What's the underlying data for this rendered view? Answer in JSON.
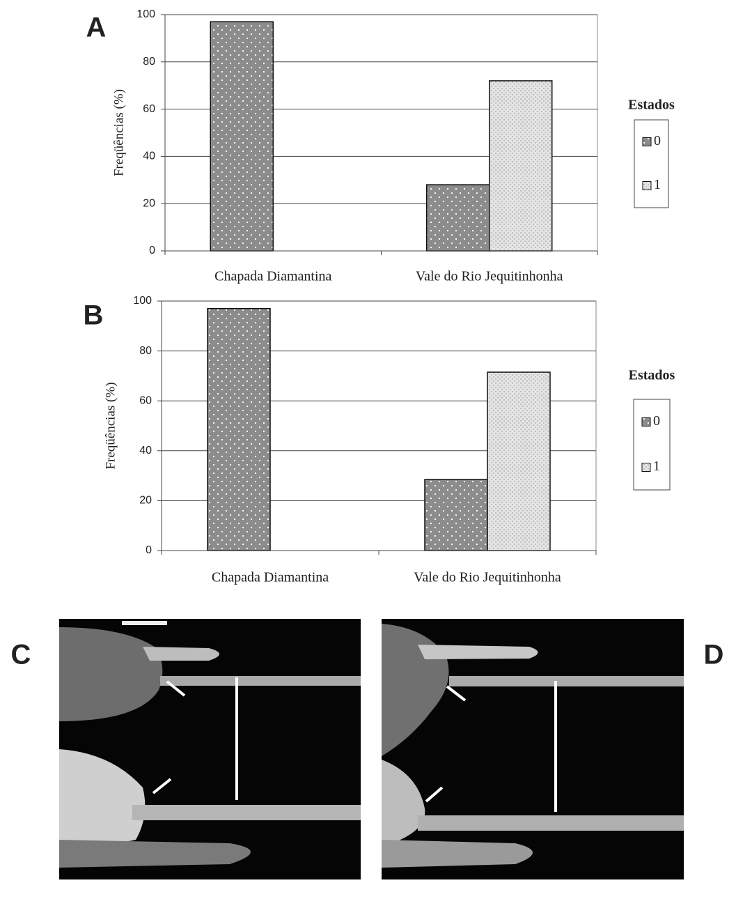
{
  "chart_data": [
    {
      "type": "bar",
      "panel_label": "A",
      "y_label": "Freqüências (%)",
      "legend_title": "Estados",
      "categories": [
        "Chapada Diamantina",
        "Vale do Rio  Jequitinhonha"
      ],
      "series": [
        {
          "name": "0",
          "color": "#8c8c8c",
          "values": [
            97,
            28
          ]
        },
        {
          "name": "1",
          "color": "#e4e4e4",
          "values": [
            0,
            72
          ]
        }
      ],
      "ylim": [
        0,
        100
      ],
      "yticks": [
        0,
        20,
        40,
        60,
        80,
        100
      ],
      "grid": true
    },
    {
      "type": "bar",
      "panel_label": "B",
      "y_label": "Freqüências (%)",
      "legend_title": "Estados",
      "categories": [
        "Chapada Diamantina",
        "Vale do Rio  Jequitinhonha"
      ],
      "series": [
        {
          "name": "0",
          "color": "#8c8c8c",
          "values": [
            97,
            28.5
          ]
        },
        {
          "name": "1",
          "color": "#e4e4e4",
          "values": [
            0,
            71.5
          ]
        }
      ],
      "ylim": [
        0,
        100
      ],
      "yticks": [
        0,
        20,
        40,
        60,
        80,
        100
      ],
      "grid": true
    }
  ],
  "photo_panels": [
    {
      "label": "C"
    },
    {
      "label": "D"
    }
  ]
}
